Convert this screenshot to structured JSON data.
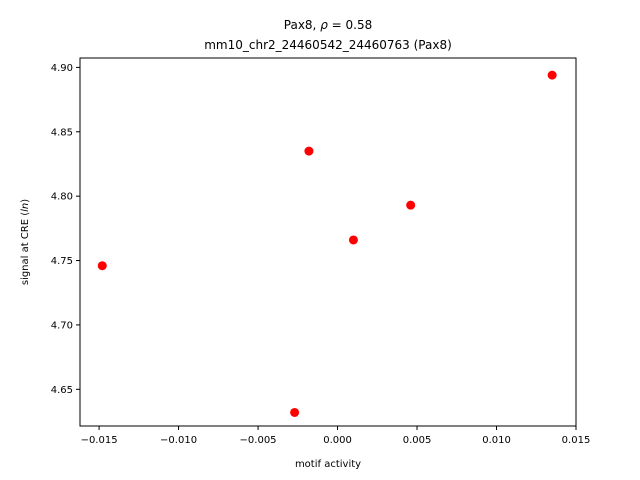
{
  "chart_data": {
    "type": "scatter",
    "title_line1_prefix": "Pax8, ",
    "title_rho_symbol": "ρ",
    "title_rho_value": " = 0.58",
    "title_line2": "mm10_chr2_24460542_24460763 (Pax8)",
    "xlabel": "motif activity",
    "ylabel_prefix": "signal at CRE (",
    "ylabel_italic": "ln",
    "ylabel_suffix": ")",
    "xlim": [
      -0.0162,
      0.015
    ],
    "ylim": [
      4.6215,
      4.9073
    ],
    "x_ticks": [
      -0.015,
      -0.01,
      -0.005,
      0.0,
      0.005,
      0.01,
      0.015
    ],
    "x_tick_labels": [
      "−0.015",
      "−0.010",
      "−0.005",
      "0.000",
      "0.005",
      "0.010",
      "0.015"
    ],
    "y_ticks": [
      4.65,
      4.7,
      4.75,
      4.8,
      4.85,
      4.9
    ],
    "y_tick_labels": [
      "4.65",
      "4.70",
      "4.75",
      "4.80",
      "4.85",
      "4.90"
    ],
    "marker_color": "#ff0000",
    "grid": false,
    "points": [
      {
        "x": -0.0148,
        "y": 4.746
      },
      {
        "x": -0.0027,
        "y": 4.632
      },
      {
        "x": -0.0018,
        "y": 4.835
      },
      {
        "x": 0.001,
        "y": 4.766
      },
      {
        "x": 0.0046,
        "y": 4.793
      },
      {
        "x": 0.0135,
        "y": 4.894
      }
    ]
  }
}
